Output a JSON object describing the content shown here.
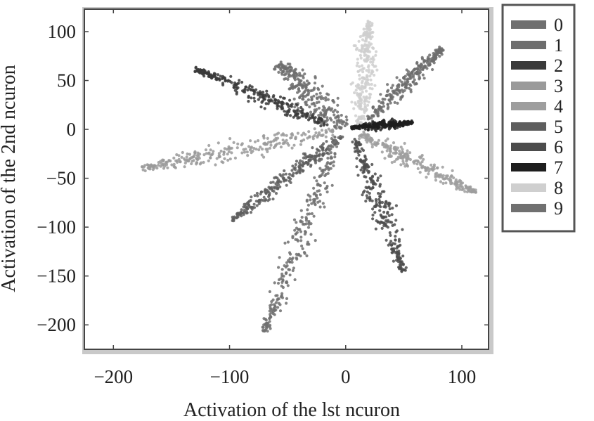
{
  "chart_data": {
    "type": "scatter",
    "title": "",
    "xlabel": "Activation of the lst ncuron",
    "ylabel": "Activation of the 2nd ncuron",
    "xlim": [
      -225,
      123
    ],
    "ylim": [
      -225,
      123
    ],
    "xticks": [
      -200,
      -100,
      0,
      100
    ],
    "yticks": [
      100,
      50,
      0,
      -50,
      -100,
      -150,
      -200
    ],
    "xtick_labels": [
      "−200",
      "−100",
      "0",
      "100"
    ],
    "ytick_labels": [
      "100",
      "50",
      "0",
      "−50",
      "−100",
      "−150",
      "−200"
    ],
    "grid": false,
    "legend_position": "right-top-outside",
    "series": [
      {
        "name": "0",
        "color": "#6f6f6f",
        "start": [
          -2,
          2
        ],
        "end": [
          -58,
          67
        ],
        "width": 14
      },
      {
        "name": "1",
        "color": "#6d6d6d",
        "start": [
          20,
          10
        ],
        "end": [
          83,
          83
        ],
        "width": 8
      },
      {
        "name": "2",
        "color": "#3a3a3a",
        "start": [
          -15,
          5
        ],
        "end": [
          -130,
          62
        ],
        "width": 7
      },
      {
        "name": "3",
        "color": "#9a9a9a",
        "start": [
          -10,
          -2
        ],
        "end": [
          -175,
          -40
        ],
        "width": 10
      },
      {
        "name": "4",
        "color": "#9e9e9e",
        "start": [
          12,
          -5
        ],
        "end": [
          112,
          -65
        ],
        "width": 8
      },
      {
        "name": "5",
        "color": "#5e5e5e",
        "start": [
          -2,
          -5
        ],
        "end": [
          -98,
          -93
        ],
        "width": 7
      },
      {
        "name": "6",
        "color": "#4c4c4c",
        "start": [
          8,
          -10
        ],
        "end": [
          50,
          -145
        ],
        "width": 9
      },
      {
        "name": "7",
        "color": "#1e1e1e",
        "start": [
          5,
          2
        ],
        "end": [
          58,
          7
        ],
        "width": 4
      },
      {
        "name": "8",
        "color": "#cfcfcf",
        "start": [
          12,
          5
        ],
        "end": [
          20,
          112
        ],
        "width": 9
      },
      {
        "name": "9",
        "color": "#707070",
        "start": [
          -8,
          -10
        ],
        "end": [
          -70,
          -208
        ],
        "width": 10
      }
    ]
  }
}
